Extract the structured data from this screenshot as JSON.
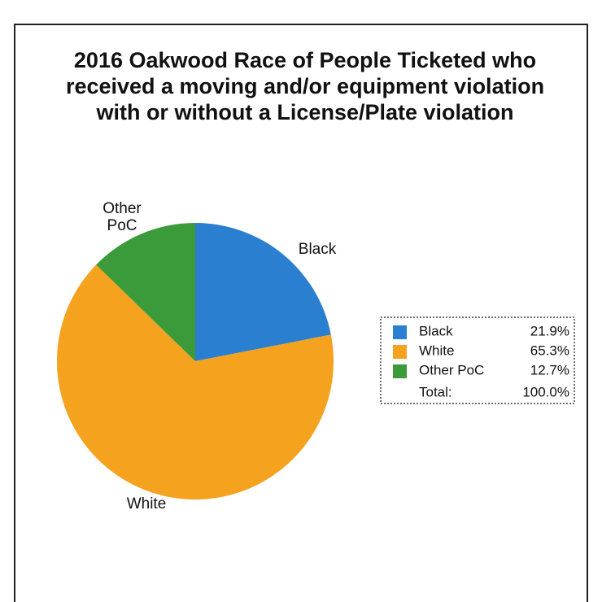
{
  "chart_data": {
    "type": "pie",
    "title": "2016 Oakwood Race of People Ticketed who received a moving and/or equipment violation with or without a License/Plate violation",
    "categories": [
      "Black",
      "White",
      "Other PoC"
    ],
    "values": [
      21.9,
      65.3,
      12.7
    ],
    "value_labels": [
      "21.9%",
      "65.3%",
      "12.7%"
    ],
    "colors": [
      "#2a7fd0",
      "#f5a21f",
      "#3b9a3a"
    ],
    "total_label": "Total:",
    "total": 100.0,
    "total_value_label": "100.0%",
    "legend": "right"
  }
}
